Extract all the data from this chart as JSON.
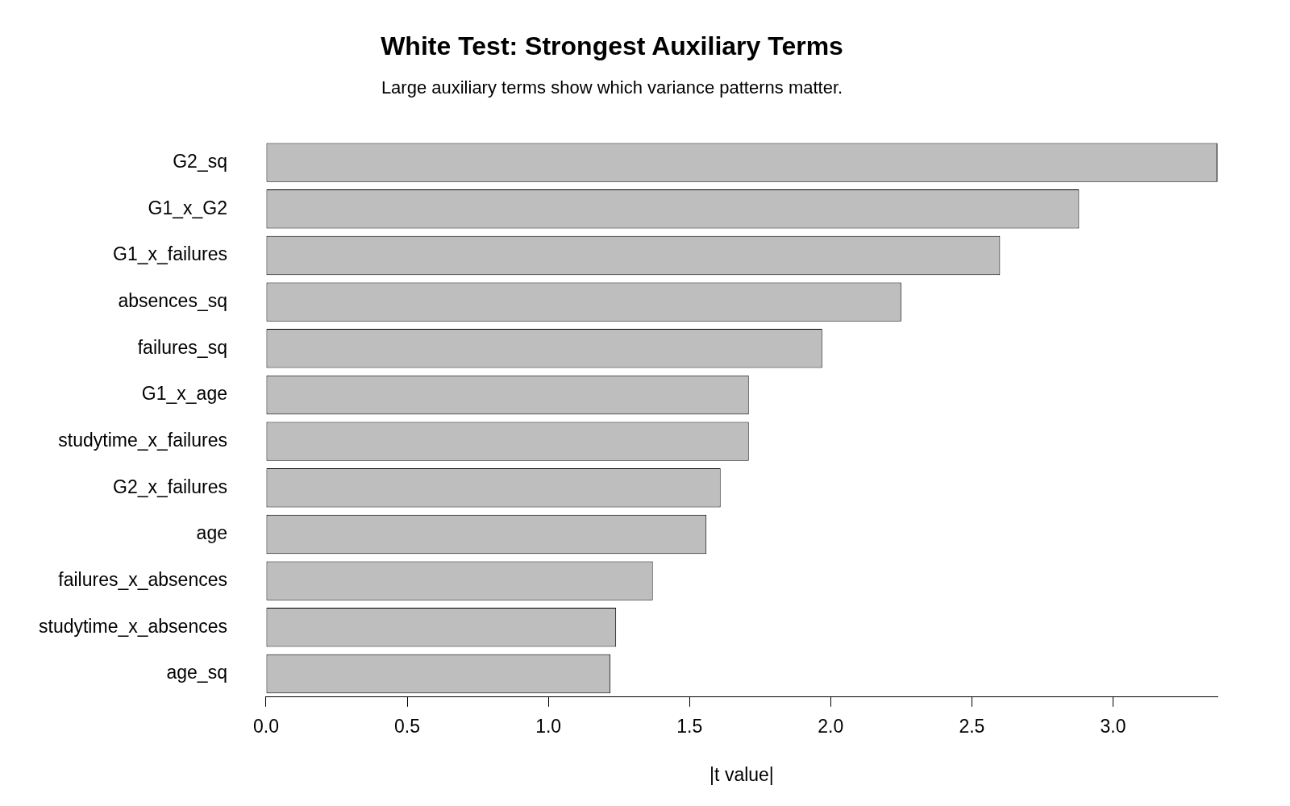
{
  "chart_data": {
    "type": "bar",
    "orientation": "horizontal",
    "title": "White Test: Strongest Auxiliary Terms",
    "subtitle": "Large auxiliary terms show which variance patterns matter.",
    "xlabel": "|t value|",
    "categories": [
      "G2_sq",
      "G1_x_G2",
      "G1_x_failures",
      "absences_sq",
      "failures_sq",
      "G1_x_age",
      "studytime_x_failures",
      "G2_x_failures",
      "age",
      "failures_x_absences",
      "studytime_x_absences",
      "age_sq"
    ],
    "values": [
      3.37,
      2.88,
      2.6,
      2.25,
      1.97,
      1.71,
      1.71,
      1.61,
      1.56,
      1.37,
      1.24,
      1.22
    ],
    "color": "#bebebe",
    "xlim": [
      0,
      3.37
    ],
    "xticks": [
      {
        "value": 0,
        "label": "0.0"
      },
      {
        "value": 0.5,
        "label": "0.5"
      },
      {
        "value": 1,
        "label": "1.0"
      },
      {
        "value": 1.5,
        "label": "1.5"
      },
      {
        "value": 2,
        "label": "2.0"
      },
      {
        "value": 2.5,
        "label": "2.5"
      },
      {
        "value": 3,
        "label": "3.0"
      }
    ],
    "grid": false,
    "legend": false
  }
}
